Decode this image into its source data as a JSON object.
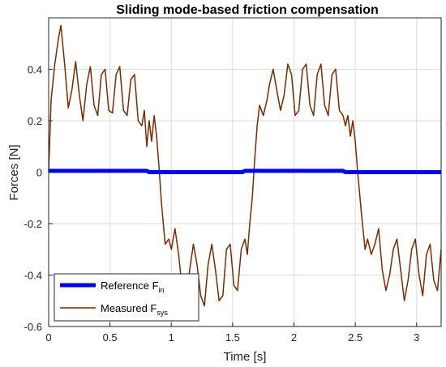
{
  "chart_data": {
    "type": "line",
    "title": "Sliding mode-based friction compensation",
    "xlabel": "Time [s]",
    "ylabel": "Forces [N]",
    "xlim": [
      0,
      3.2
    ],
    "ylim": [
      -0.6,
      0.6
    ],
    "xticks": [
      0,
      0.5,
      1,
      1.5,
      2,
      2.5,
      3
    ],
    "xtick_labels": [
      "0",
      "0.5",
      "1",
      "1.5",
      "2",
      "2.5",
      "3"
    ],
    "yticks": [
      -0.6,
      -0.4,
      -0.2,
      0,
      0.2,
      0.4
    ],
    "ytick_labels": [
      "-0.6",
      "-0.4",
      "-0.2",
      "0",
      "0.2",
      "0.4"
    ],
    "grid": true,
    "legend_position": "bottom-left",
    "series": [
      {
        "name": "Reference F",
        "name_sub": "in",
        "color": "#0000ee",
        "x": [
          0,
          0.8,
          0.82,
          1.58,
          1.6,
          2.4,
          2.42,
          3.2
        ],
        "y": [
          0.005,
          0.005,
          0.0,
          0.0,
          0.005,
          0.005,
          0.0,
          0.0
        ]
      },
      {
        "name": "Measured F",
        "name_sub": "sys",
        "color": "#7a2a00",
        "x": [
          0,
          0.02,
          0.05,
          0.08,
          0.1,
          0.13,
          0.16,
          0.19,
          0.22,
          0.25,
          0.28,
          0.31,
          0.34,
          0.37,
          0.4,
          0.43,
          0.46,
          0.49,
          0.52,
          0.55,
          0.58,
          0.61,
          0.64,
          0.67,
          0.7,
          0.73,
          0.76,
          0.78,
          0.8,
          0.82,
          0.84,
          0.86,
          0.88,
          0.9,
          0.92,
          0.95,
          0.98,
          1.0,
          1.03,
          1.06,
          1.09,
          1.12,
          1.15,
          1.18,
          1.21,
          1.24,
          1.27,
          1.3,
          1.33,
          1.36,
          1.39,
          1.42,
          1.45,
          1.48,
          1.51,
          1.54,
          1.57,
          1.6,
          1.62,
          1.64,
          1.66,
          1.68,
          1.7,
          1.72,
          1.75,
          1.78,
          1.8,
          1.83,
          1.86,
          1.89,
          1.92,
          1.95,
          1.98,
          2.01,
          2.04,
          2.07,
          2.1,
          2.13,
          2.16,
          2.19,
          2.22,
          2.25,
          2.28,
          2.31,
          2.34,
          2.37,
          2.4,
          2.42,
          2.44,
          2.46,
          2.48,
          2.5,
          2.52,
          2.55,
          2.58,
          2.6,
          2.63,
          2.66,
          2.69,
          2.72,
          2.75,
          2.78,
          2.81,
          2.84,
          2.87,
          2.9,
          2.93,
          2.96,
          2.99,
          3.02,
          3.05,
          3.08,
          3.11,
          3.14,
          3.17,
          3.2
        ],
        "y": [
          0.0,
          0.28,
          0.42,
          0.52,
          0.57,
          0.42,
          0.25,
          0.32,
          0.43,
          0.3,
          0.2,
          0.34,
          0.41,
          0.26,
          0.22,
          0.38,
          0.4,
          0.24,
          0.23,
          0.38,
          0.41,
          0.24,
          0.22,
          0.36,
          0.38,
          0.2,
          0.18,
          0.24,
          0.1,
          0.2,
          0.12,
          0.22,
          0.14,
          0.02,
          -0.12,
          -0.28,
          -0.26,
          -0.3,
          -0.22,
          -0.32,
          -0.46,
          -0.5,
          -0.38,
          -0.28,
          -0.36,
          -0.48,
          -0.52,
          -0.36,
          -0.28,
          -0.38,
          -0.5,
          -0.48,
          -0.3,
          -0.28,
          -0.44,
          -0.46,
          -0.3,
          -0.26,
          -0.32,
          -0.2,
          -0.1,
          0.05,
          0.18,
          0.26,
          0.22,
          0.28,
          0.34,
          0.4,
          0.32,
          0.24,
          0.3,
          0.42,
          0.38,
          0.22,
          0.24,
          0.4,
          0.42,
          0.26,
          0.22,
          0.38,
          0.42,
          0.26,
          0.22,
          0.38,
          0.4,
          0.24,
          0.22,
          0.18,
          0.22,
          0.14,
          0.2,
          0.12,
          0.0,
          -0.16,
          -0.3,
          -0.26,
          -0.32,
          -0.28,
          -0.22,
          -0.38,
          -0.46,
          -0.4,
          -0.3,
          -0.26,
          -0.38,
          -0.5,
          -0.42,
          -0.3,
          -0.26,
          -0.4,
          -0.48,
          -0.32,
          -0.28,
          -0.42,
          -0.46,
          -0.3
        ]
      }
    ]
  }
}
